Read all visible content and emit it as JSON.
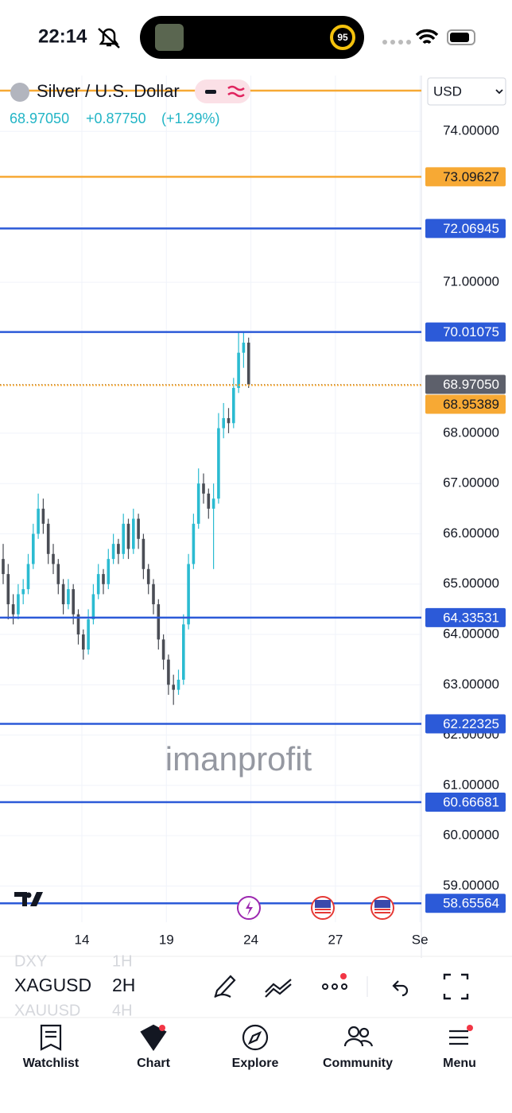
{
  "status_bar": {
    "time": "22:14",
    "activity_ring": "95"
  },
  "chart_data": {
    "type": "candlestick",
    "title": "Silver / U.S. Dollar",
    "change": "+0.87750",
    "change_pct": "(+1.29%)",
    "currency": "USD",
    "watermark": "imanprofit",
    "grid": true,
    "up_color": "#2bbbd1",
    "down_color": "#4a4d55",
    "ylim": [
      58.28,
      75.11
    ],
    "yticks": [
      {
        "value": 74,
        "label": "74.00000"
      },
      {
        "value": 71,
        "label": "71.00000"
      },
      {
        "value": 68,
        "label": "68.00000"
      },
      {
        "value": 67,
        "label": "67.00000"
      },
      {
        "value": 66,
        "label": "66.00000"
      },
      {
        "value": 65,
        "label": "65.00000"
      },
      {
        "value": 64,
        "label": "64.00000"
      },
      {
        "value": 63,
        "label": "63.00000"
      },
      {
        "value": 62,
        "label": "62.00000"
      },
      {
        "value": 61,
        "label": "61.00000"
      },
      {
        "value": 60,
        "label": "60.00000"
      },
      {
        "value": 59,
        "label": "59.00000"
      }
    ],
    "x_labels": [
      "14",
      "19",
      "24",
      "27",
      "Se"
    ],
    "current_price": {
      "value": 68.9705,
      "label": "68.97050",
      "color": "#5d606b"
    },
    "levels": [
      {
        "value": 73.09627,
        "color": "#f7a934",
        "style": "solid"
      },
      {
        "value": 72.06945,
        "color": "#2c5ad8",
        "style": "solid"
      },
      {
        "value": 70.01075,
        "color": "#2c5ad8",
        "style": "solid"
      },
      {
        "value": 68.95389,
        "color": "#f7a934",
        "style": "dotted"
      },
      {
        "value": 64.33531,
        "color": "#2c5ad8",
        "style": "solid"
      },
      {
        "value": 62.22325,
        "color": "#2c5ad8",
        "style": "solid"
      },
      {
        "value": 60.66681,
        "color": "#2c5ad8",
        "style": "solid"
      },
      {
        "value": 58.65564,
        "color": "#2c5ad8",
        "style": "solid"
      }
    ],
    "candles": [
      [
        65.5,
        65.8,
        65.0,
        65.2
      ],
      [
        65.2,
        65.4,
        64.3,
        64.6
      ],
      [
        64.6,
        64.8,
        64.2,
        64.4
      ],
      [
        64.4,
        65.0,
        64.3,
        64.8
      ],
      [
        64.8,
        65.1,
        64.6,
        64.9
      ],
      [
        64.9,
        65.6,
        64.8,
        65.4
      ],
      [
        65.4,
        66.2,
        65.3,
        66.0
      ],
      [
        66.0,
        66.8,
        65.9,
        66.5
      ],
      [
        66.5,
        66.7,
        66.0,
        66.2
      ],
      [
        66.2,
        66.3,
        65.4,
        65.6
      ],
      [
        65.6,
        65.8,
        65.2,
        65.4
      ],
      [
        65.4,
        65.5,
        64.8,
        65.0
      ],
      [
        65.0,
        65.1,
        64.4,
        64.6
      ],
      [
        64.6,
        65.1,
        64.5,
        64.9
      ],
      [
        64.9,
        65.0,
        64.2,
        64.4
      ],
      [
        64.4,
        64.5,
        63.8,
        64.0
      ],
      [
        64.0,
        64.1,
        63.5,
        63.7
      ],
      [
        63.7,
        64.5,
        63.6,
        64.3
      ],
      [
        64.3,
        65.0,
        64.2,
        64.8
      ],
      [
        64.8,
        65.4,
        64.7,
        65.2
      ],
      [
        65.2,
        65.3,
        64.8,
        65.0
      ],
      [
        65.0,
        65.7,
        64.9,
        65.5
      ],
      [
        65.5,
        66.0,
        65.4,
        65.8
      ],
      [
        65.8,
        65.9,
        65.4,
        65.6
      ],
      [
        65.6,
        66.4,
        65.5,
        66.2
      ],
      [
        66.2,
        66.3,
        65.5,
        65.7
      ],
      [
        65.7,
        66.5,
        65.6,
        66.3
      ],
      [
        66.3,
        66.4,
        65.7,
        65.9
      ],
      [
        65.9,
        66.0,
        65.1,
        65.3
      ],
      [
        65.3,
        65.4,
        64.8,
        65.0
      ],
      [
        65.0,
        65.1,
        64.4,
        64.6
      ],
      [
        64.6,
        64.7,
        63.7,
        63.9
      ],
      [
        63.9,
        64.0,
        63.3,
        63.5
      ],
      [
        63.5,
        63.6,
        62.8,
        63.0
      ],
      [
        63.0,
        63.2,
        62.6,
        62.9
      ],
      [
        62.9,
        63.3,
        62.8,
        63.1
      ],
      [
        63.1,
        64.4,
        63.0,
        64.2
      ],
      [
        64.2,
        65.6,
        64.1,
        65.4
      ],
      [
        65.4,
        66.4,
        65.3,
        66.2
      ],
      [
        66.2,
        67.3,
        66.1,
        67.0
      ],
      [
        67.0,
        67.2,
        66.6,
        66.8
      ],
      [
        66.8,
        66.9,
        66.3,
        66.5
      ],
      [
        66.5,
        67.0,
        65.3,
        66.7
      ],
      [
        66.7,
        68.4,
        66.6,
        68.1
      ],
      [
        68.1,
        68.6,
        67.9,
        68.3
      ],
      [
        68.3,
        68.5,
        68.0,
        68.2
      ],
      [
        68.2,
        69.1,
        68.1,
        68.9
      ],
      [
        68.9,
        70.0,
        68.8,
        69.6
      ],
      [
        69.6,
        70.01,
        69.3,
        69.8
      ],
      [
        69.8,
        69.9,
        68.9,
        68.97
      ]
    ]
  },
  "toolbar": {
    "symbols": [
      "DXY",
      "XAGUSD",
      "XAUUSD"
    ],
    "intervals": [
      "1H",
      "2H",
      "4H"
    ]
  },
  "nav": [
    "Watchlist",
    "Chart",
    "Explore",
    "Community",
    "Menu"
  ]
}
